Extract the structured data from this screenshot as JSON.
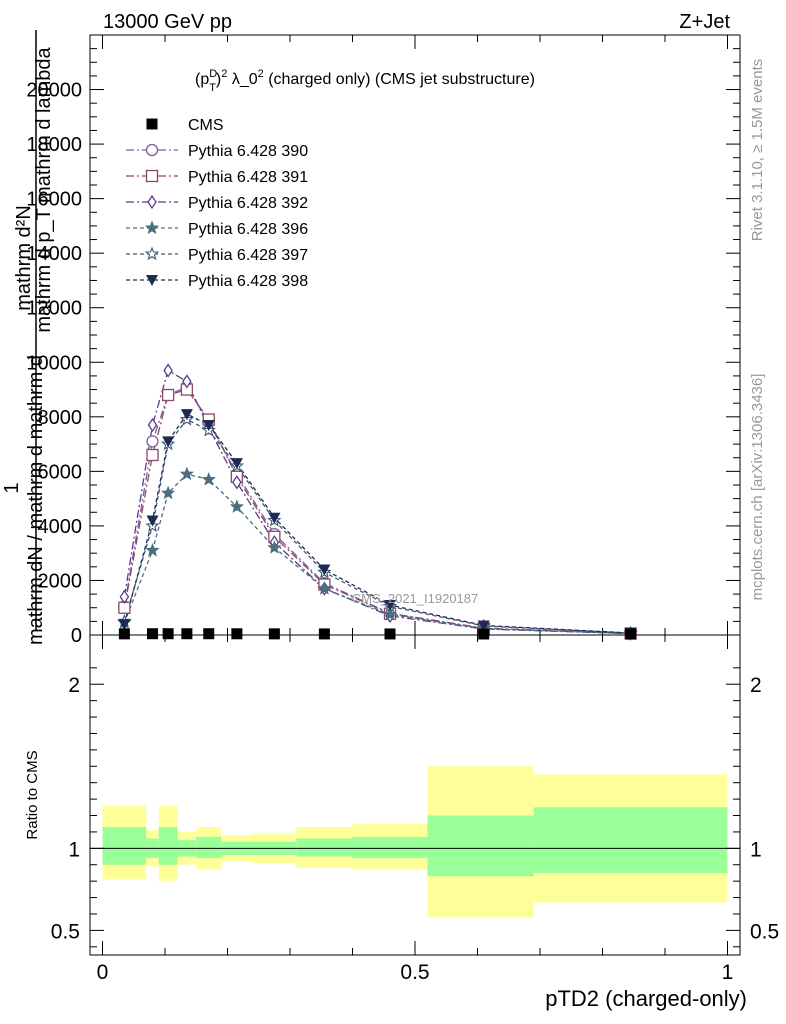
{
  "header": {
    "energy_label": "13000 GeV pp",
    "process_label": "Z+Jet"
  },
  "side_labels": {
    "rivet": "Rivet 3.1.10, ≥ 1.5M events",
    "mcplots": "mcplots.cern.ch [arXiv:1306.3436]"
  },
  "chart_data": [
    {
      "type": "line",
      "title": "(p_T^D)^2 λ_0^2 (charged only) (CMS jet substructure)",
      "title_parts": {
        "p": "(p",
        "T": "T",
        "D": "D",
        "close": ")",
        "sq": "2",
        "mid": " λ_0",
        "sq2": "2",
        "rest": " (charged only) (CMS jet substructure)"
      },
      "ylabel_numer": "mathrm d²N",
      "ylabel_denom": "mathrm d p_T mathrm d lambda",
      "ylabel_left": "1",
      "ylabel_left2": "mathrm dN / mathrm d mathrm d",
      "watermark": "CMS_2021_I1920187",
      "xlim": [
        -0.02,
        1.02
      ],
      "ylim": [
        0,
        22000
      ],
      "y_ticks": [
        {
          "value": 0,
          "label": "0"
        },
        {
          "value": 2000,
          "label": "2000"
        },
        {
          "value": 4000,
          "label": "4000"
        },
        {
          "value": 6000,
          "label": "6000"
        },
        {
          "value": 8000,
          "label": "8000"
        },
        {
          "value": 10000,
          "label": "10000"
        },
        {
          "value": 12000,
          "label": "12000"
        },
        {
          "value": 14000,
          "label": "14000"
        },
        {
          "value": 16000,
          "label": "16000"
        },
        {
          "value": 18000,
          "label": "18000"
        },
        {
          "value": 20000,
          "label": "20000"
        }
      ],
      "legend_position": "top-left",
      "data_series": {
        "name": "CMS",
        "marker": "square",
        "color": "#000000",
        "x": [
          0.035,
          0.08,
          0.105,
          0.135,
          0.17,
          0.215,
          0.275,
          0.355,
          0.46,
          0.61,
          0.845
        ],
        "y": [
          5,
          10,
          10,
          10,
          10,
          8,
          5,
          3,
          2,
          1,
          0
        ]
      },
      "series": [
        {
          "name": "Pythia 6.428 390",
          "marker": "circle-open",
          "color": "#7d5aa0",
          "dash": "8,3,2,3",
          "x": [
            0.035,
            0.08,
            0.105,
            0.135,
            0.17,
            0.215,
            0.275,
            0.355,
            0.46,
            0.61,
            0.845
          ],
          "y": [
            1050,
            7100,
            8800,
            9100,
            7800,
            5900,
            3700,
            1900,
            800,
            250,
            60
          ]
        },
        {
          "name": "Pythia 6.428 391",
          "marker": "square-open",
          "color": "#8a4a62",
          "dash": "8,3,2,3",
          "x": [
            0.035,
            0.08,
            0.105,
            0.135,
            0.17,
            0.215,
            0.275,
            0.355,
            0.46,
            0.61,
            0.845
          ],
          "y": [
            1000,
            6600,
            8800,
            9000,
            7900,
            5800,
            3600,
            1850,
            780,
            240,
            55
          ]
        },
        {
          "name": "Pythia 6.428 392",
          "marker": "diamond-open",
          "color": "#5a3c8c",
          "dash": "8,3,2,3",
          "x": [
            0.035,
            0.08,
            0.105,
            0.135,
            0.17,
            0.215,
            0.275,
            0.355,
            0.46,
            0.61,
            0.845
          ],
          "y": [
            1400,
            7700,
            9700,
            9300,
            7600,
            5600,
            3400,
            1700,
            700,
            220,
            50
          ]
        },
        {
          "name": "Pythia 6.428 396",
          "marker": "star-filled",
          "color": "#4a7080",
          "dash": "4,3",
          "x": [
            0.035,
            0.08,
            0.105,
            0.135,
            0.17,
            0.215,
            0.275,
            0.355,
            0.46,
            0.61,
            0.845
          ],
          "y": [
            450,
            3100,
            5200,
            5900,
            5700,
            4700,
            3200,
            1700,
            750,
            230,
            55
          ]
        },
        {
          "name": "Pythia 6.428 397",
          "marker": "star-open",
          "color": "#3a5a72",
          "dash": "4,3",
          "x": [
            0.035,
            0.08,
            0.105,
            0.135,
            0.17,
            0.215,
            0.275,
            0.355,
            0.46,
            0.61,
            0.845
          ],
          "y": [
            500,
            4000,
            7000,
            7900,
            7500,
            6200,
            4200,
            2300,
            1050,
            330,
            70
          ]
        },
        {
          "name": "Pythia 6.428 398",
          "marker": "triangle-down-filled",
          "color": "#1e2a55",
          "dash": "4,3",
          "x": [
            0.035,
            0.08,
            0.105,
            0.135,
            0.17,
            0.215,
            0.275,
            0.355,
            0.46,
            0.61,
            0.845
          ],
          "y": [
            400,
            4200,
            7100,
            8100,
            7700,
            6300,
            4300,
            2400,
            1100,
            350,
            75
          ]
        }
      ]
    },
    {
      "type": "area",
      "ylabel": "Ratio to CMS",
      "xlabel": "pTD2 (charged-only)",
      "xlim": [
        -0.02,
        1.02
      ],
      "ylim": [
        0.35,
        2.3
      ],
      "y_ticks": [
        {
          "value": 0.5,
          "label": "0.5"
        },
        {
          "value": 1,
          "label": "1"
        },
        {
          "value": 2,
          "label": "2"
        }
      ],
      "x_ticks": [
        {
          "value": 0,
          "label": "0"
        },
        {
          "value": 0.5,
          "label": "0.5"
        },
        {
          "value": 1,
          "label": "1"
        }
      ],
      "reference_line": 1,
      "bands": {
        "bins": [
          {
            "lo": 0.0,
            "hi": 0.07,
            "stat_lo": 0.9,
            "stat_hi": 1.13,
            "tot_lo": 0.81,
            "tot_hi": 1.26
          },
          {
            "lo": 0.07,
            "hi": 0.09,
            "stat_lo": 0.94,
            "stat_hi": 1.06,
            "tot_lo": 0.89,
            "tot_hi": 1.11
          },
          {
            "lo": 0.09,
            "hi": 0.12,
            "stat_lo": 0.9,
            "stat_hi": 1.13,
            "tot_lo": 0.8,
            "tot_hi": 1.26
          },
          {
            "lo": 0.12,
            "hi": 0.15,
            "stat_lo": 0.95,
            "stat_hi": 1.05,
            "tot_lo": 0.9,
            "tot_hi": 1.1
          },
          {
            "lo": 0.15,
            "hi": 0.19,
            "stat_lo": 0.94,
            "stat_hi": 1.07,
            "tot_lo": 0.87,
            "tot_hi": 1.13
          },
          {
            "lo": 0.19,
            "hi": 0.24,
            "stat_lo": 0.96,
            "stat_hi": 1.04,
            "tot_lo": 0.92,
            "tot_hi": 1.08
          },
          {
            "lo": 0.24,
            "hi": 0.31,
            "stat_lo": 0.96,
            "stat_hi": 1.04,
            "tot_lo": 0.91,
            "tot_hi": 1.09
          },
          {
            "lo": 0.31,
            "hi": 0.4,
            "stat_lo": 0.95,
            "stat_hi": 1.06,
            "tot_lo": 0.88,
            "tot_hi": 1.13
          },
          {
            "lo": 0.4,
            "hi": 0.52,
            "stat_lo": 0.94,
            "stat_hi": 1.07,
            "tot_lo": 0.87,
            "tot_hi": 1.15
          },
          {
            "lo": 0.52,
            "hi": 0.69,
            "stat_lo": 0.83,
            "stat_hi": 1.2,
            "tot_lo": 0.58,
            "tot_hi": 1.5
          },
          {
            "lo": 0.69,
            "hi": 1.0,
            "stat_lo": 0.85,
            "stat_hi": 1.25,
            "tot_lo": 0.67,
            "tot_hi": 1.45
          }
        ],
        "stat_color": "#99ff99",
        "total_color": "#ffff99"
      }
    }
  ]
}
